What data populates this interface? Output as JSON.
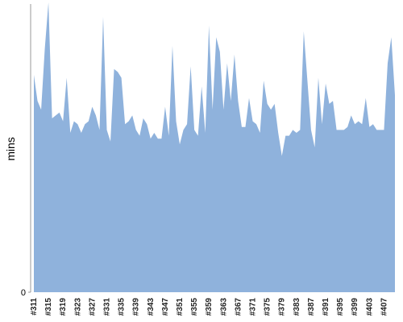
{
  "chart_data": {
    "type": "area",
    "y_label": "mins",
    "categories": [
      "#311",
      null,
      null,
      null,
      "#315",
      null,
      null,
      null,
      "#319",
      null,
      null,
      null,
      "#323",
      null,
      null,
      null,
      "#327",
      null,
      null,
      null,
      "#331",
      null,
      null,
      null,
      "#335",
      null,
      null,
      null,
      "#339",
      null,
      null,
      null,
      "#343",
      null,
      null,
      null,
      "#347",
      null,
      null,
      null,
      "#351",
      null,
      null,
      null,
      "#355",
      null,
      null,
      null,
      "#359",
      null,
      null,
      null,
      "#363",
      null,
      null,
      null,
      "#367",
      null,
      null,
      null,
      "#371",
      null,
      null,
      null,
      "#375",
      null,
      null,
      null,
      "#379",
      null,
      null,
      null,
      "#383",
      null,
      null,
      null,
      "#387",
      null,
      null,
      null,
      "#391",
      null,
      null,
      null,
      "#395",
      null,
      null,
      null,
      "#399",
      null,
      null,
      null,
      "#403",
      null,
      null,
      null,
      "#407",
      null,
      null,
      null
    ],
    "values": [
      75,
      66,
      63,
      84,
      100,
      60,
      61,
      62,
      59,
      74,
      55,
      59,
      58,
      55,
      58,
      59,
      64,
      61,
      56,
      95,
      56,
      52,
      77,
      76,
      74,
      58,
      59,
      61,
      56,
      54,
      60,
      58,
      53,
      55,
      53,
      53,
      64,
      54,
      85,
      59,
      51,
      56,
      58,
      78,
      56,
      54,
      71,
      55,
      92,
      63,
      88,
      83,
      63,
      79,
      66,
      82,
      66,
      57,
      57,
      67,
      59,
      58,
      55,
      73,
      65,
      63,
      65,
      55,
      47,
      54,
      54,
      56,
      55,
      56,
      90,
      73,
      56,
      50,
      74,
      58,
      72,
      65,
      66,
      56,
      56,
      56,
      57,
      61,
      58,
      59,
      58,
      67,
      57,
      58,
      56,
      56,
      56,
      79,
      88,
      68
    ],
    "color": "#8fb2dc",
    "ylim": [
      0,
      100
    ],
    "yticks": [
      0
    ]
  }
}
